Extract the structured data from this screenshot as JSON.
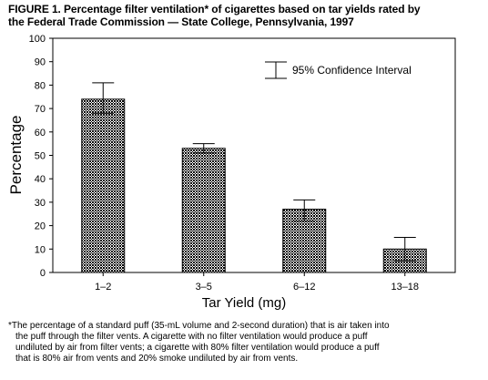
{
  "title": {
    "line1": "FIGURE 1. Percentage filter ventilation* of cigarettes based on tar yields rated by",
    "line2": "the Federal Trade Commission — State College, Pennsylvania, 1997"
  },
  "chart_data": {
    "type": "bar",
    "title": "FIGURE 1. Percentage filter ventilation* of cigarettes based on tar yields rated by the Federal Trade Commission — State College, Pennsylvania, 1997",
    "xlabel": "Tar Yield (mg)",
    "ylabel": "Percentage",
    "categories": [
      "1–2",
      "3–5",
      "6–12",
      "13–18"
    ],
    "values": [
      74,
      53,
      27,
      10
    ],
    "ci_lower": [
      68,
      51,
      22,
      5
    ],
    "ci_upper": [
      81,
      55,
      31,
      15
    ],
    "ylim": [
      0,
      100
    ],
    "yticks": [
      0,
      10,
      20,
      30,
      40,
      50,
      60,
      70,
      80,
      90,
      100
    ],
    "legend": {
      "label": "95% Confidence Interval",
      "position": "top-right"
    },
    "grid": false,
    "bar_fill": "crosshatch"
  },
  "footnote": {
    "line1": "*The percentage of a standard puff (35-mL volume and 2-second duration) that is air taken into",
    "line2": "the puff through the filter vents. A cigarette with no filter ventilation would produce a puff",
    "line3": "undiluted by air from filter vents; a cigarette with 80% filter ventilation would produce a puff",
    "line4": "that is 80% air from vents and 20% smoke undiluted by air from vents."
  }
}
